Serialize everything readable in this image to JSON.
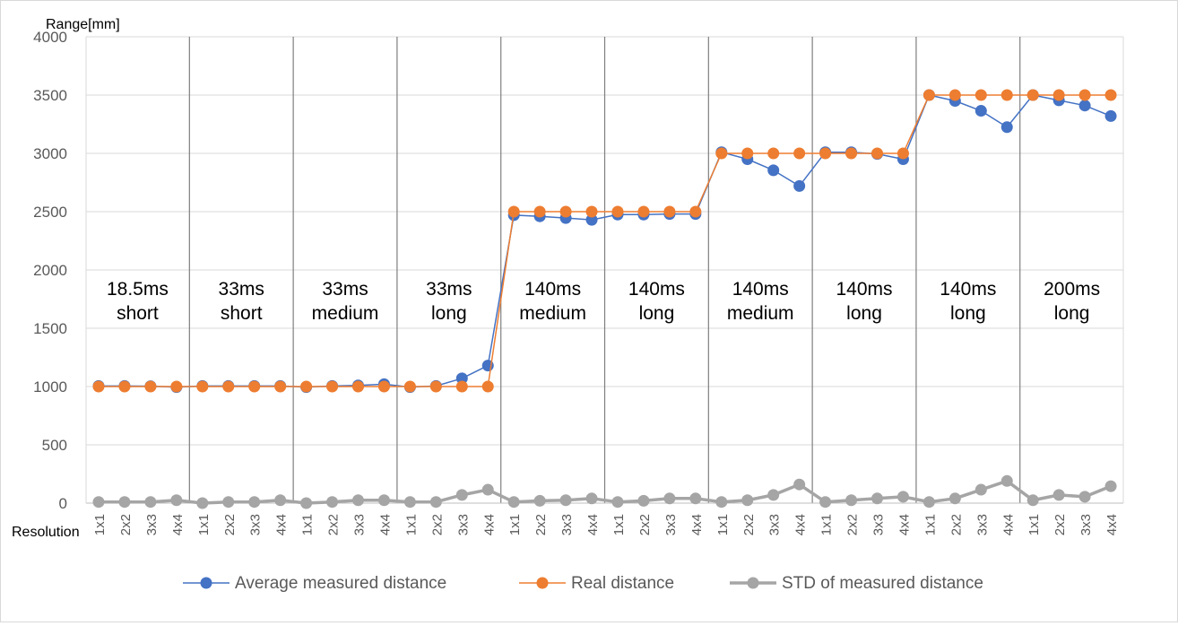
{
  "chart_data": {
    "type": "line",
    "ylabel": "Range[mm]",
    "xlabel": "Resolution",
    "ylim": [
      0,
      4000
    ],
    "yticks": [
      "0",
      "500",
      "1000",
      "1500",
      "2000",
      "2500",
      "3000",
      "3500",
      "4000"
    ],
    "categories": [
      "1x1",
      "2x2",
      "3x3",
      "4x4",
      "1x1",
      "2x2",
      "3x3",
      "4x4",
      "1x1",
      "2x2",
      "3x3",
      "4x4",
      "1x1",
      "2x2",
      "3x3",
      "4x4",
      "1x1",
      "2x2",
      "3x3",
      "4x4",
      "1x1",
      "2x2",
      "3x3",
      "4x4",
      "1x1",
      "2x2",
      "3x3",
      "4x4",
      "1x1",
      "2x2",
      "3x3",
      "4x4",
      "1x1",
      "2x2",
      "3x3",
      "4x4",
      "1x1",
      "2x2",
      "3x3",
      "4x4"
    ],
    "groups": [
      {
        "line1": "18.5ms",
        "line2": "short"
      },
      {
        "line1": "33ms",
        "line2": "short"
      },
      {
        "line1": "33ms",
        "line2": "medium"
      },
      {
        "line1": "33ms",
        "line2": "long"
      },
      {
        "line1": "140ms",
        "line2": "medium"
      },
      {
        "line1": "140ms",
        "line2": "long"
      },
      {
        "line1": "140ms",
        "line2": "medium"
      },
      {
        "line1": "140ms",
        "line2": "long"
      },
      {
        "line1": "140ms",
        "line2": "long"
      },
      {
        "line1": "200ms",
        "line2": "long"
      }
    ],
    "series": [
      {
        "name": "Average measured distance",
        "color": "#4472c4",
        "values": [
          1005,
          1005,
          1003,
          995,
          1005,
          1005,
          1005,
          1005,
          995,
          1005,
          1010,
          1020,
          995,
          1005,
          1070,
          1180,
          2470,
          2460,
          2445,
          2430,
          2475,
          2475,
          2480,
          2480,
          3010,
          2950,
          2855,
          2720,
          3010,
          3010,
          2995,
          2950,
          3500,
          3450,
          3365,
          3225,
          3500,
          3455,
          3410,
          3320
        ]
      },
      {
        "name": "Real distance",
        "color": "#ed7d31",
        "values": [
          1000,
          1000,
          1000,
          1000,
          1000,
          1000,
          1000,
          1000,
          1000,
          1000,
          1000,
          1000,
          1000,
          1000,
          1000,
          1000,
          2500,
          2500,
          2500,
          2500,
          2500,
          2500,
          2500,
          2500,
          3000,
          3000,
          3000,
          3000,
          3000,
          3000,
          3000,
          3000,
          3500,
          3500,
          3500,
          3500,
          3500,
          3500,
          3500,
          3500
        ]
      },
      {
        "name": "STD of measured distance",
        "color": "#a5a5a5",
        "values": [
          10,
          10,
          10,
          25,
          0,
          10,
          10,
          25,
          0,
          10,
          25,
          25,
          10,
          10,
          70,
          115,
          10,
          20,
          25,
          40,
          10,
          20,
          40,
          40,
          10,
          25,
          70,
          160,
          10,
          25,
          40,
          55,
          10,
          40,
          115,
          190,
          25,
          70,
          55,
          145
        ]
      }
    ],
    "legend_position": "bottom",
    "grid": true
  }
}
